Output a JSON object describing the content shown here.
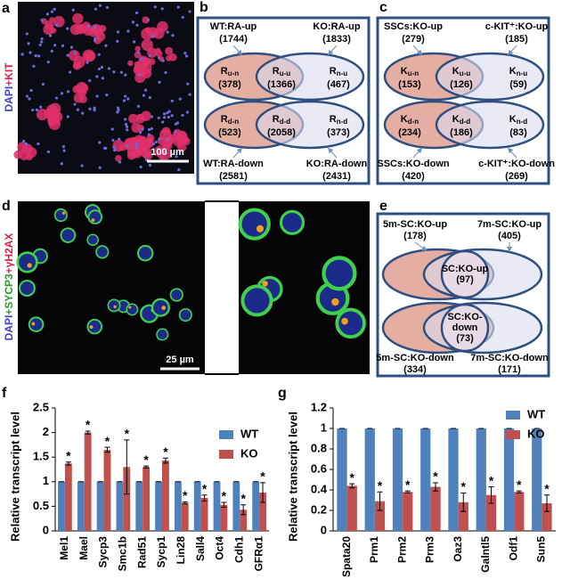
{
  "figure": {
    "a": {
      "label": "a",
      "stain": [
        "DAPI",
        "+KIT"
      ],
      "scale_bar": "100 µm"
    },
    "b": {
      "label": "b",
      "top_left": {
        "name": "WT:RA-up",
        "count": "(1744)"
      },
      "top_right": {
        "name": "KO:RA-up",
        "count": "(1833)"
      },
      "bottom_left": {
        "name": "WT:RA-down",
        "count": "(2581)"
      },
      "bottom_right": {
        "name": "KO:RA-down",
        "count": "(2431)"
      },
      "regions": [
        {
          "symbol": "R",
          "sub": "u-n",
          "count": "(378)"
        },
        {
          "symbol": "R",
          "sub": "u-u",
          "count": "(1366)"
        },
        {
          "symbol": "R",
          "sub": "n-u",
          "count": "(467)"
        },
        {
          "symbol": "R",
          "sub": "d-n",
          "count": "(523)"
        },
        {
          "symbol": "R",
          "sub": "d-d",
          "count": "(2058)"
        },
        {
          "symbol": "R",
          "sub": "n-d",
          "count": "(373)"
        }
      ]
    },
    "c": {
      "label": "c",
      "top_left": {
        "name": "SSCs:KO-up",
        "count": "(279)"
      },
      "top_right": {
        "name": "c-KIT⁺:KO-up",
        "count": "(185)"
      },
      "bottom_left": {
        "name": "SSCs:KO-down",
        "count": "(420)"
      },
      "bottom_right": {
        "name": "c-KIT⁺:KO-down",
        "count": "(269)"
      },
      "regions": [
        {
          "symbol": "K",
          "sub": "u-n",
          "count": "(153)"
        },
        {
          "symbol": "K",
          "sub": "u-u",
          "count": "(126)"
        },
        {
          "symbol": "K",
          "sub": "n-u",
          "count": "(59)"
        },
        {
          "symbol": "K",
          "sub": "d-n",
          "count": "(234)"
        },
        {
          "symbol": "K",
          "sub": "d-d",
          "count": "(186)"
        },
        {
          "symbol": "K",
          "sub": "n-d",
          "count": "(83)"
        }
      ]
    },
    "d": {
      "label": "d",
      "stain": [
        "DAPI",
        "+SYCP3",
        "+γH2AX"
      ],
      "scale_bar": "25 µm"
    },
    "e": {
      "label": "e",
      "top_left": {
        "name": "5m-SC:KO-up",
        "count": "(178)"
      },
      "top_right": {
        "name": "7m-SC:KO-up",
        "count": "(405)"
      },
      "bottom_left": {
        "name": "5m-SC:KO-down",
        "count": "(334)"
      },
      "bottom_right": {
        "name": "7m-SC:KO-down",
        "count": "(171)"
      },
      "overlap_up": [
        "SC:KO-up",
        "(97)"
      ],
      "overlap_down": [
        "SC:KO-",
        "down",
        "(73)"
      ]
    }
  },
  "chart_data": [
    {
      "type": "bar",
      "label": "f",
      "ylabel": "Relative transcript level",
      "categories": [
        "Mel1",
        "Mael",
        "Sycp3",
        "Smc1b",
        "Rad51",
        "Sycp1",
        "Lin28",
        "Sall4",
        "Oct4",
        "Cdh1",
        "GFRα1"
      ],
      "series": [
        {
          "name": "WT",
          "color": "#4f81bd",
          "values": [
            1,
            1,
            1,
            1,
            1,
            1,
            1,
            1,
            1,
            1,
            1
          ],
          "errors": [
            0,
            0,
            0,
            0,
            0,
            0,
            0,
            0,
            0,
            0,
            0
          ]
        },
        {
          "name": "KO",
          "color": "#c0504d",
          "values": [
            1.37,
            2.0,
            1.65,
            1.3,
            1.3,
            1.43,
            0.57,
            0.67,
            0.53,
            0.43,
            0.78
          ],
          "errors": [
            0.03,
            0.03,
            0.05,
            0.55,
            0.02,
            0.05,
            0.02,
            0.06,
            0.05,
            0.1,
            0.2
          ]
        }
      ],
      "significance": [
        "*",
        "*",
        "*",
        "*",
        "*",
        "*",
        "*",
        "*",
        "*",
        "*",
        "*"
      ],
      "ylim": [
        0,
        2.5
      ],
      "yticks": [
        0,
        0.5,
        1,
        1.5,
        2,
        2.5
      ],
      "legend": "upper right"
    },
    {
      "type": "bar",
      "label": "g",
      "ylabel": "Relative transcript level",
      "categories": [
        "Spata20",
        "Prm1",
        "Prm2",
        "Prm3",
        "Oaz3",
        "Galntl5",
        "Odf1",
        "Sun5"
      ],
      "series": [
        {
          "name": "WT",
          "color": "#4f81bd",
          "values": [
            1,
            1,
            1,
            1,
            1,
            1,
            1,
            1
          ],
          "errors": [
            0,
            0,
            0,
            0,
            0,
            0,
            0,
            0
          ]
        },
        {
          "name": "KO",
          "color": "#c0504d",
          "values": [
            0.44,
            0.29,
            0.38,
            0.43,
            0.28,
            0.35,
            0.38,
            0.27
          ],
          "errors": [
            0.02,
            0.09,
            0.01,
            0.04,
            0.09,
            0.08,
            0.01,
            0.08
          ]
        }
      ],
      "significance": [
        "*",
        "*",
        "*",
        "*",
        "*",
        "*",
        "*",
        "*"
      ],
      "ylim": [
        0,
        1.2
      ],
      "yticks": [
        0,
        0.2,
        0.4,
        0.6,
        0.8,
        1,
        1.2
      ],
      "legend": "upper right"
    }
  ]
}
